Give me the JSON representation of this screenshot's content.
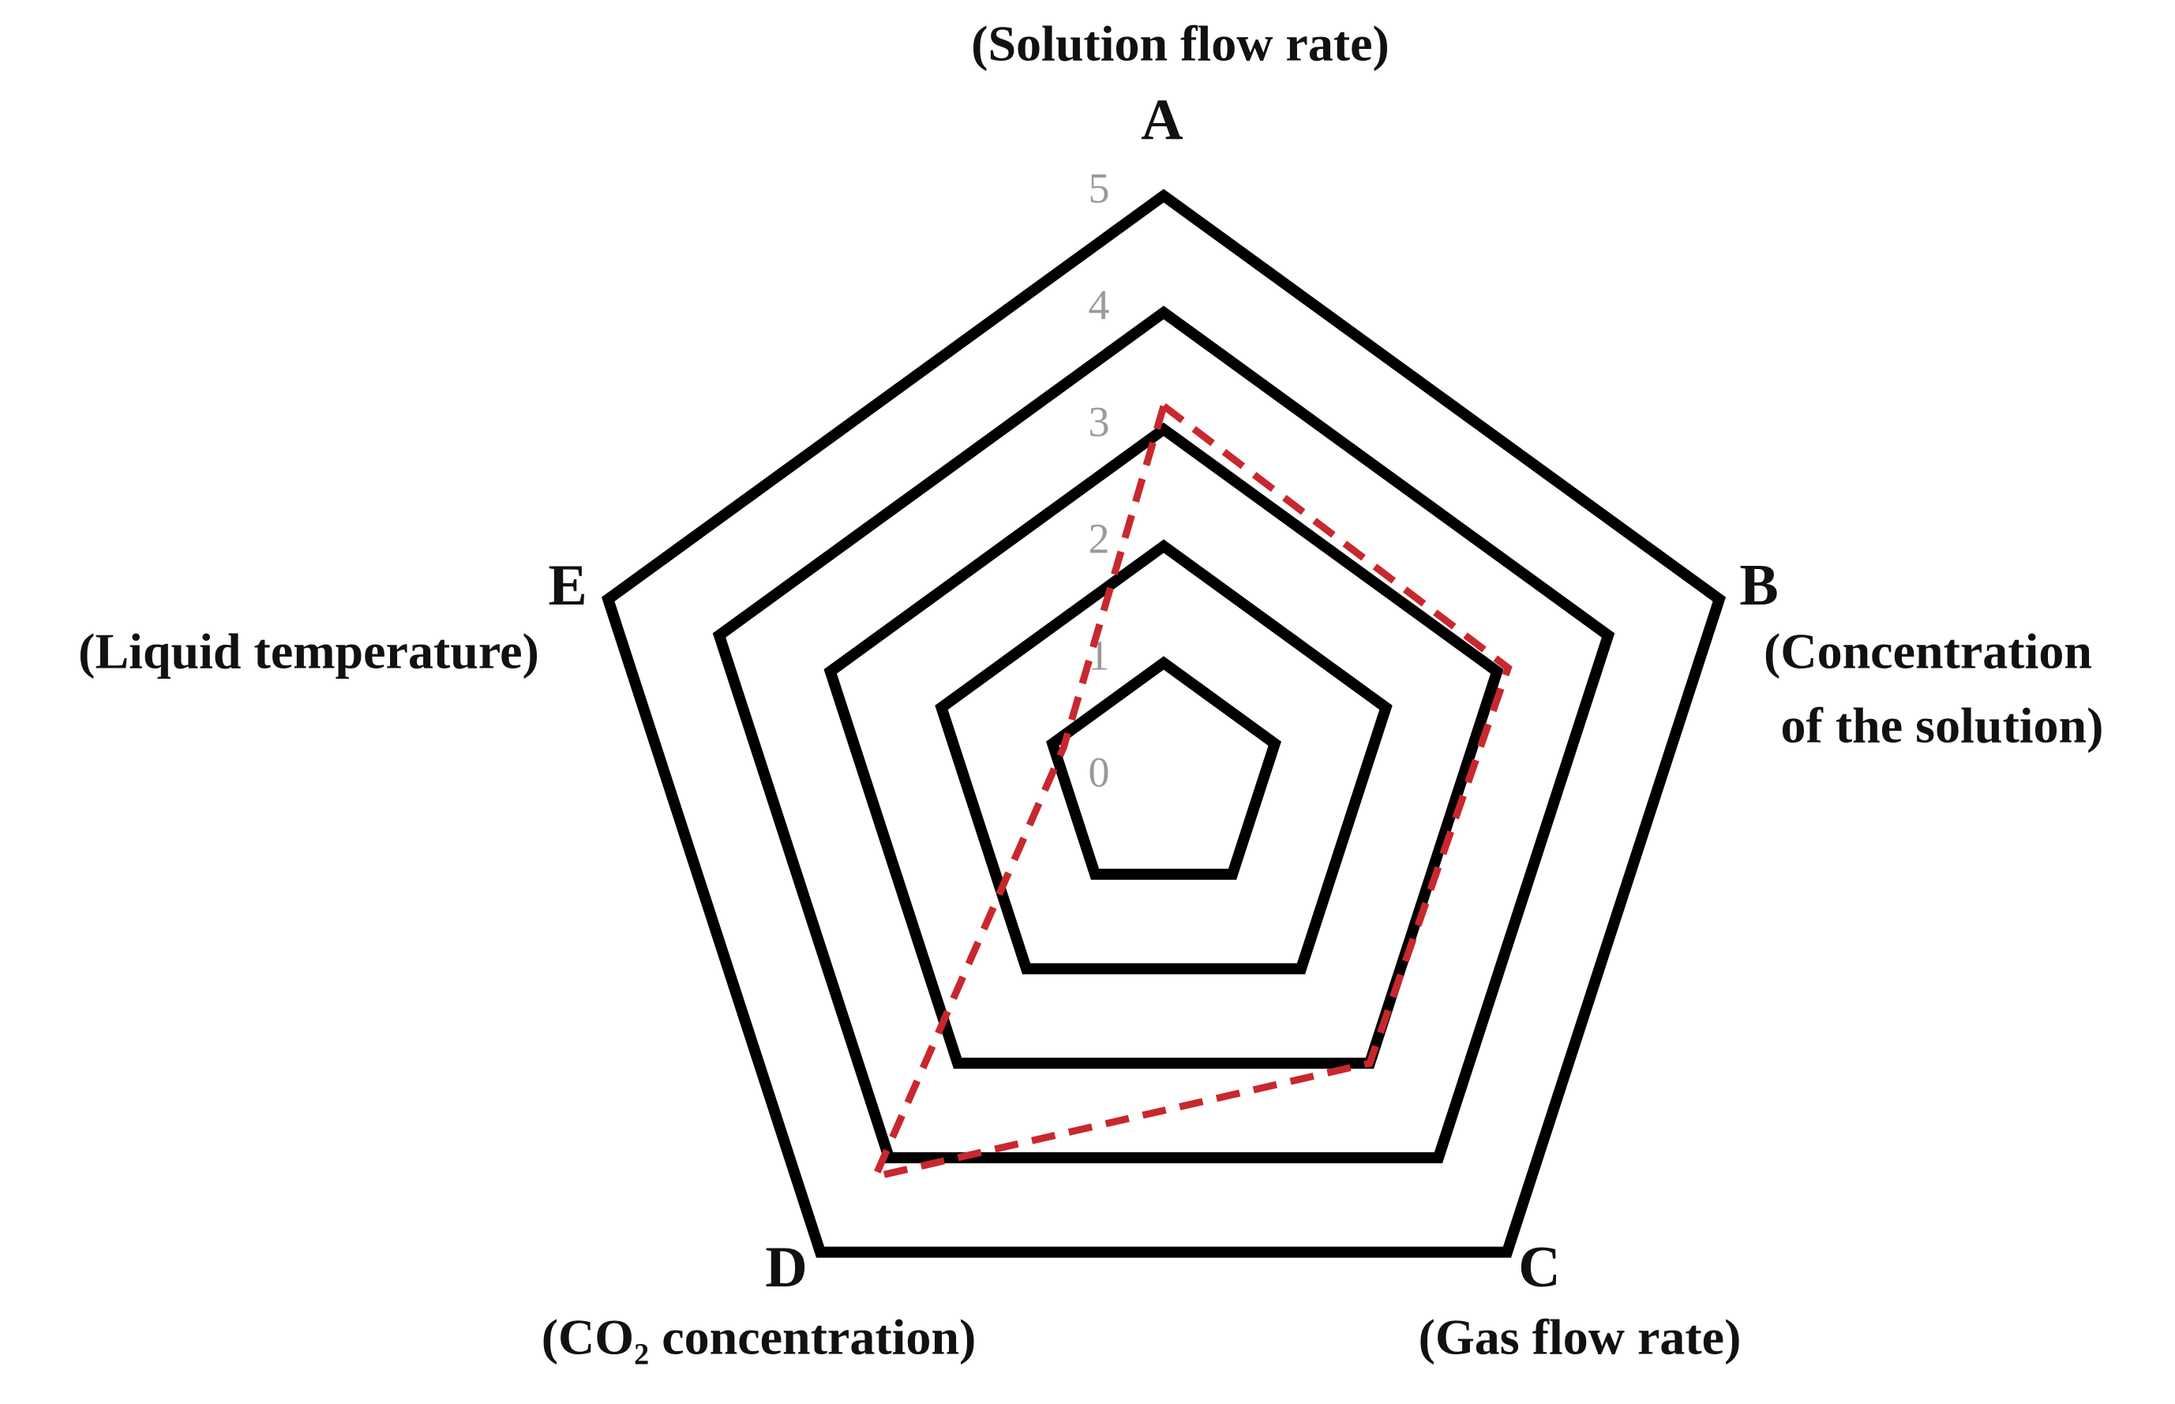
{
  "chart_data": {
    "type": "radar",
    "categories": [
      "A",
      "B",
      "C",
      "D",
      "E"
    ],
    "category_descriptions": [
      [
        "(Solution flow rate)"
      ],
      [
        "(Concentration",
        "of the solution)"
      ],
      [
        "(Gas flow rate)"
      ],
      [
        "(CO₂ concentration)"
      ],
      [
        "(Liquid temperature)"
      ]
    ],
    "series": [
      {
        "color": "#c8282d",
        "values": [
          3.2,
          3.1,
          3.0,
          4.2,
          0.9
        ]
      }
    ],
    "ylim": [
      0,
      5
    ],
    "yticks": [
      0,
      1,
      2,
      3,
      4,
      5
    ],
    "grid": true,
    "grid_color": "#000000",
    "line_style": "dashed"
  }
}
